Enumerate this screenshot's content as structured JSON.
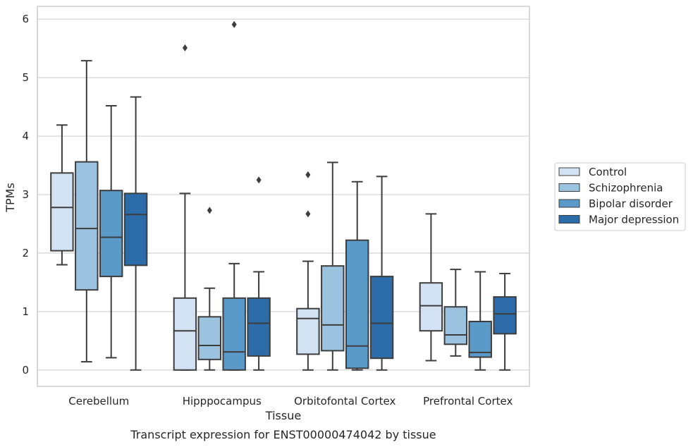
{
  "chart_data": {
    "type": "box",
    "xlabel": "Tissue",
    "ylabel": "TPMs",
    "caption": "Transcript expression for ENST00000474042 by tissue",
    "ylim": [
      -0.28,
      6.22
    ],
    "yticks": [
      0,
      1,
      2,
      3,
      4,
      5,
      6
    ],
    "grid": "horizontal",
    "legend_position": "right",
    "categories": [
      "Cerebellum",
      "Hipppocampus",
      "Orbitofontal Cortex",
      "Prefrontal Cortex"
    ],
    "series": [
      {
        "name": "Control",
        "color": "#d2e2f2",
        "boxes": [
          {
            "min": 1.8,
            "q1": 2.04,
            "median": 2.78,
            "q3": 3.37,
            "max": 4.19,
            "outliers": []
          },
          {
            "min": 0.0,
            "q1": 0.0,
            "median": 0.67,
            "q3": 1.23,
            "max": 3.02,
            "outliers": [
              5.51
            ]
          },
          {
            "min": 0.0,
            "q1": 0.27,
            "median": 0.88,
            "q3": 1.05,
            "max": 1.86,
            "outliers": [
              2.67,
              3.34
            ]
          },
          {
            "min": 0.16,
            "q1": 0.67,
            "median": 1.1,
            "q3": 1.49,
            "max": 2.67,
            "outliers": []
          }
        ]
      },
      {
        "name": "Schizophrenia",
        "color": "#9bc3df",
        "boxes": [
          {
            "min": 0.14,
            "q1": 1.37,
            "median": 2.42,
            "q3": 3.56,
            "max": 5.29,
            "outliers": []
          },
          {
            "min": 0.0,
            "q1": 0.18,
            "median": 0.42,
            "q3": 0.91,
            "max": 1.4,
            "outliers": [
              2.73
            ]
          },
          {
            "min": 0.0,
            "q1": 0.33,
            "median": 0.77,
            "q3": 1.78,
            "max": 3.55,
            "outliers": []
          },
          {
            "min": 0.24,
            "q1": 0.44,
            "median": 0.6,
            "q3": 1.08,
            "max": 1.72,
            "outliers": []
          }
        ]
      },
      {
        "name": "Bipolar disorder",
        "color": "#5a9ac9",
        "boxes": [
          {
            "min": 0.21,
            "q1": 1.6,
            "median": 2.27,
            "q3": 3.07,
            "max": 4.52,
            "outliers": []
          },
          {
            "min": 0.0,
            "q1": 0.0,
            "median": 0.31,
            "q3": 1.23,
            "max": 1.82,
            "outliers": [
              5.91
            ]
          },
          {
            "min": 0.0,
            "q1": 0.03,
            "median": 0.41,
            "q3": 2.22,
            "max": 3.22,
            "outliers": []
          },
          {
            "min": 0.0,
            "q1": 0.22,
            "median": 0.3,
            "q3": 0.83,
            "max": 1.68,
            "outliers": []
          }
        ]
      },
      {
        "name": "Major depression",
        "color": "#2c6ca8",
        "boxes": [
          {
            "min": 0.0,
            "q1": 1.79,
            "median": 2.66,
            "q3": 3.02,
            "max": 4.67,
            "outliers": []
          },
          {
            "min": 0.0,
            "q1": 0.24,
            "median": 0.8,
            "q3": 1.23,
            "max": 1.68,
            "outliers": [
              3.25
            ]
          },
          {
            "min": 0.0,
            "q1": 0.2,
            "median": 0.8,
            "q3": 1.6,
            "max": 3.31,
            "outliers": []
          },
          {
            "min": 0.0,
            "q1": 0.62,
            "median": 0.96,
            "q3": 1.25,
            "max": 1.65,
            "outliers": []
          }
        ]
      }
    ]
  }
}
